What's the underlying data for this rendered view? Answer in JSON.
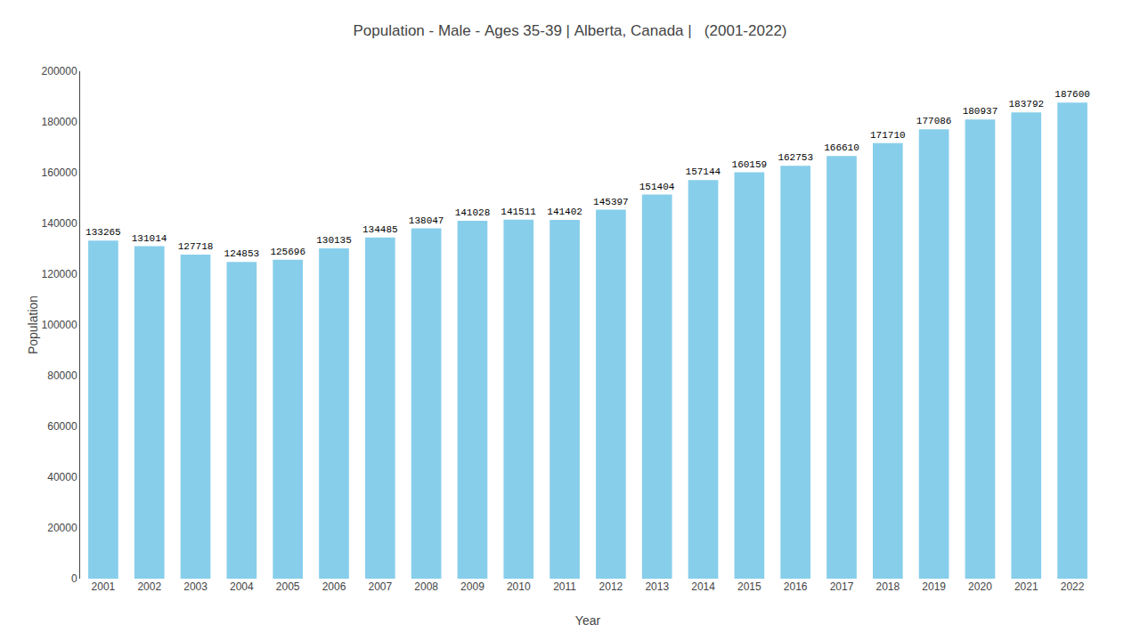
{
  "chart_data": {
    "type": "bar",
    "title": "Population - Male - Ages 35-39 | Alberta, Canada |   (2001-2022)",
    "xlabel": "Year",
    "ylabel": "Population",
    "categories": [
      "2001",
      "2002",
      "2003",
      "2004",
      "2005",
      "2006",
      "2007",
      "2008",
      "2009",
      "2010",
      "2011",
      "2012",
      "2013",
      "2014",
      "2015",
      "2016",
      "2017",
      "2018",
      "2019",
      "2020",
      "2021",
      "2022"
    ],
    "values": [
      133265,
      131014,
      127718,
      124853,
      125696,
      130135,
      134485,
      138047,
      141028,
      141511,
      141402,
      145397,
      151404,
      157144,
      160159,
      162753,
      166610,
      171710,
      177086,
      180937,
      183792,
      187600
    ],
    "color": "#87CEEB",
    "ylim": [
      0,
      200000
    ],
    "yticks": [
      0,
      20000,
      40000,
      60000,
      80000,
      100000,
      120000,
      140000,
      160000,
      180000,
      200000
    ],
    "data_labels": true,
    "grid": false
  }
}
